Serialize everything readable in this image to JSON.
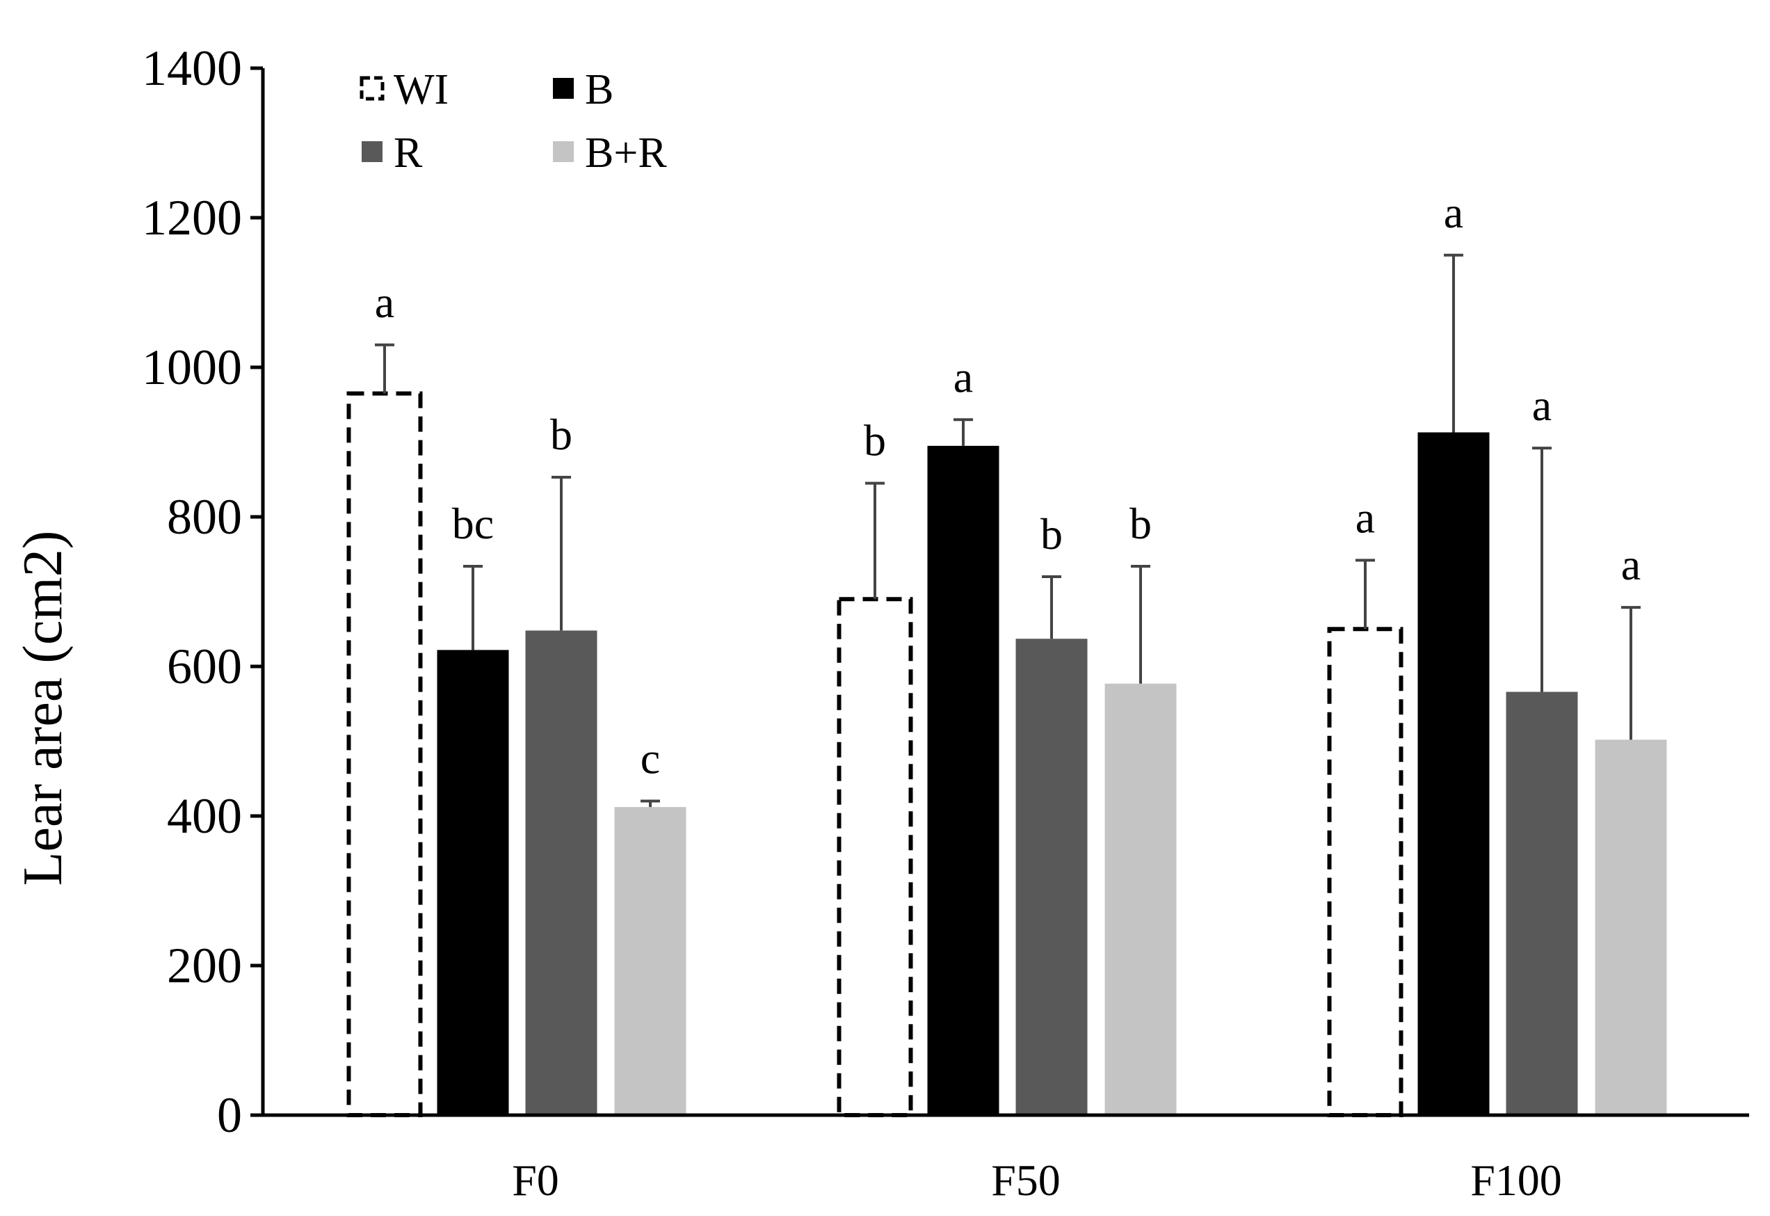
{
  "chart_data": {
    "type": "bar",
    "title": "",
    "xlabel": "",
    "ylabel": "Lear area (cm2)",
    "ylim": [
      0,
      1400
    ],
    "yticks": [
      0,
      200,
      400,
      600,
      800,
      1000,
      1200,
      1400
    ],
    "grid": false,
    "legend_position": "top-left",
    "categories": [
      "F0",
      "F50",
      "F100"
    ],
    "series": [
      {
        "name": "WI",
        "style": "dashed-outline",
        "color": "#000000",
        "values": [
          965,
          690,
          650
        ],
        "errors": [
          65,
          155,
          92
        ],
        "letters": [
          "a",
          "b",
          "a"
        ]
      },
      {
        "name": "B",
        "style": "solid",
        "color": "#000000",
        "values": [
          622,
          895,
          913
        ],
        "errors": [
          112,
          35,
          237
        ],
        "letters": [
          "bc",
          "a",
          "a"
        ]
      },
      {
        "name": "R",
        "style": "solid",
        "color": "#595959",
        "values": [
          648,
          637,
          566
        ],
        "errors": [
          205,
          83,
          326
        ],
        "letters": [
          "b",
          "b",
          "a"
        ]
      },
      {
        "name": "B+R",
        "style": "solid",
        "color": "#c4c4c4",
        "values": [
          412,
          577,
          502
        ],
        "errors": [
          8,
          157,
          177
        ],
        "letters": [
          "c",
          "b",
          "a"
        ]
      }
    ]
  }
}
